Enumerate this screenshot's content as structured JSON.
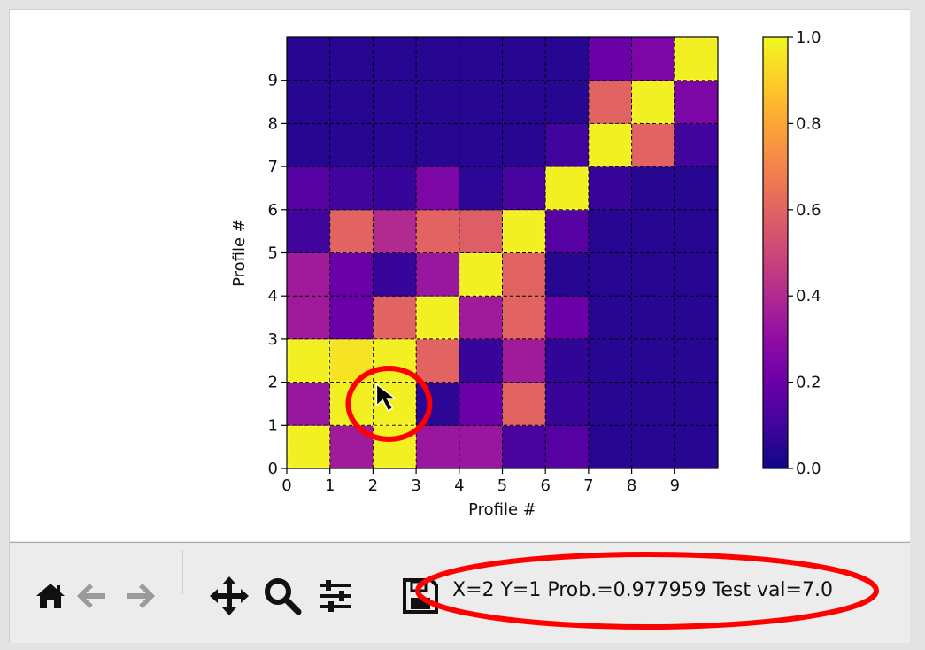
{
  "colors": {
    "accent_annotation": "#f00",
    "colormap": "plasma",
    "grid_line": "#000000",
    "highlight_edge": "#ffff55"
  },
  "chart_data": {
    "type": "heatmap",
    "title": "",
    "xlabel": "Profile #",
    "ylabel": "Profile #",
    "x_ticks": [
      "0",
      "1",
      "2",
      "3",
      "4",
      "5",
      "6",
      "7",
      "8",
      "9"
    ],
    "y_ticks": [
      "0",
      "1",
      "2",
      "3",
      "4",
      "5",
      "6",
      "7",
      "8",
      "9"
    ],
    "xlim": [
      0,
      10
    ],
    "ylim": [
      0,
      10
    ],
    "grid": true,
    "grid_style": "dashed",
    "rows_bottom_to_top": [
      [
        0.98,
        0.35,
        0.98,
        0.33,
        0.33,
        0.12,
        0.15,
        0.05,
        0.05,
        0.05
      ],
      [
        0.33,
        0.98,
        0.98,
        0.06,
        0.2,
        0.6,
        0.08,
        0.05,
        0.05,
        0.05
      ],
      [
        0.98,
        0.95,
        0.98,
        0.6,
        0.08,
        0.35,
        0.07,
        0.05,
        0.05,
        0.05
      ],
      [
        0.35,
        0.2,
        0.6,
        0.98,
        0.35,
        0.6,
        0.2,
        0.05,
        0.05,
        0.05
      ],
      [
        0.35,
        0.2,
        0.08,
        0.33,
        0.98,
        0.6,
        0.05,
        0.05,
        0.05,
        0.05
      ],
      [
        0.1,
        0.6,
        0.4,
        0.6,
        0.58,
        0.98,
        0.15,
        0.05,
        0.05,
        0.05
      ],
      [
        0.15,
        0.1,
        0.08,
        0.25,
        0.06,
        0.12,
        0.98,
        0.08,
        0.05,
        0.05
      ],
      [
        0.05,
        0.05,
        0.05,
        0.05,
        0.05,
        0.05,
        0.1,
        0.98,
        0.6,
        0.1
      ],
      [
        0.05,
        0.05,
        0.05,
        0.05,
        0.05,
        0.05,
        0.05,
        0.6,
        0.98,
        0.25
      ],
      [
        0.05,
        0.05,
        0.05,
        0.05,
        0.05,
        0.05,
        0.05,
        0.2,
        0.25,
        0.98
      ]
    ],
    "highlighted_cells": [
      [
        0,
        0
      ],
      [
        2,
        0
      ],
      [
        1,
        1
      ],
      [
        2,
        1
      ],
      [
        0,
        2
      ],
      [
        1,
        2
      ],
      [
        2,
        2
      ],
      [
        3,
        3
      ],
      [
        4,
        4
      ],
      [
        5,
        5
      ],
      [
        6,
        6
      ],
      [
        7,
        7
      ],
      [
        8,
        8
      ],
      [
        9,
        9
      ]
    ],
    "colorbar": {
      "ticks": [
        "0.0",
        "0.2",
        "0.4",
        "0.6",
        "0.8",
        "1.0"
      ],
      "range": [
        0,
        1
      ]
    }
  },
  "annotations": {
    "cursor_circle": {
      "cell_x": 2,
      "cell_y": 1.5
    },
    "status_oval": true
  },
  "toolbar": {
    "buttons": [
      {
        "name": "home-button",
        "icon": "home-icon"
      },
      {
        "name": "back-button",
        "icon": "left-arrow-icon",
        "disabled": true
      },
      {
        "name": "forward-button",
        "icon": "right-arrow-icon",
        "disabled": true
      },
      {
        "name": "pan-button",
        "icon": "move-icon"
      },
      {
        "name": "zoom-button",
        "icon": "magnifier-icon"
      },
      {
        "name": "configure-subplots-button",
        "icon": "sliders-icon"
      },
      {
        "name": "save-button",
        "icon": "floppy-disk-icon"
      }
    ],
    "status": "X=2 Y=1 Prob.=0.977959 Test val=7.0"
  }
}
